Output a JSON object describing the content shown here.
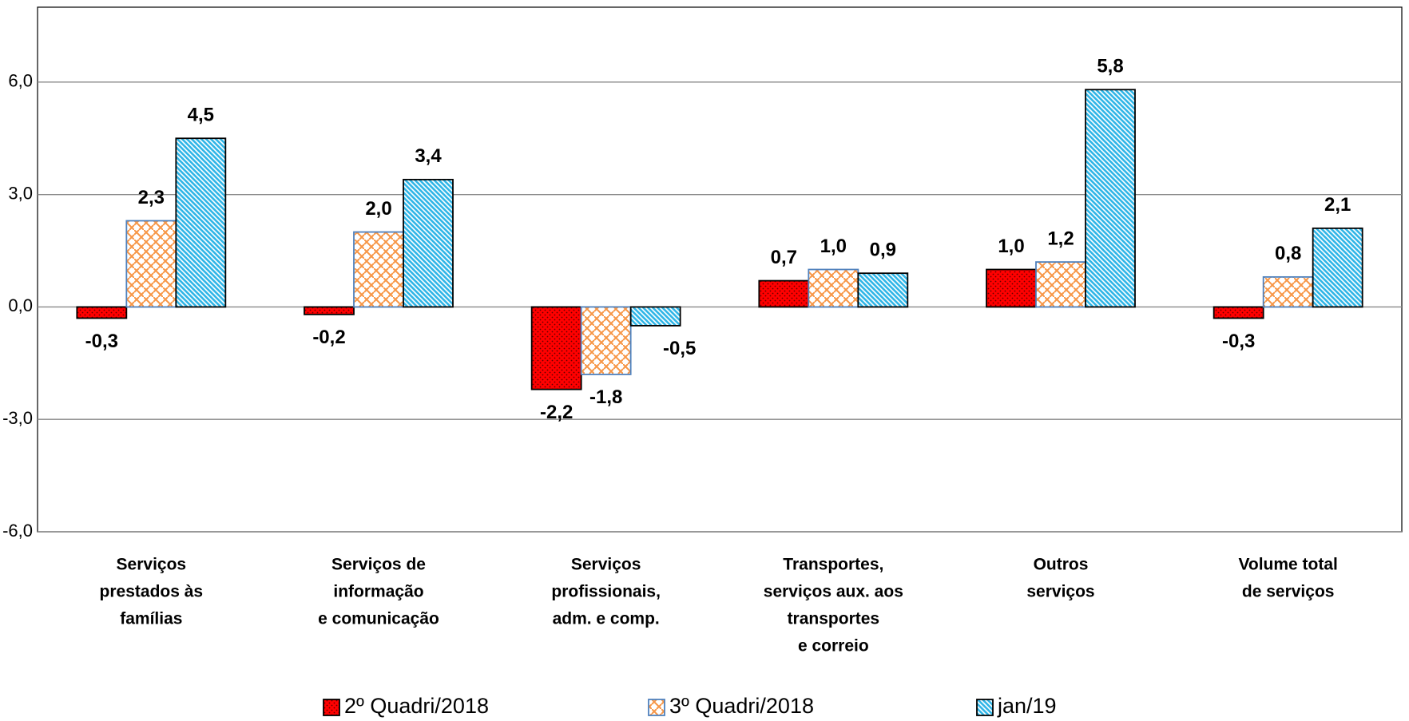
{
  "chart_data": {
    "type": "bar",
    "categories": [
      [
        "Serviços",
        "prestados às",
        "famílias"
      ],
      [
        "Serviços de",
        "informação",
        "e comunicação"
      ],
      [
        "Serviços",
        "profissionais,",
        "adm. e comp."
      ],
      [
        "Transportes,",
        "serviços aux. aos",
        "transportes",
        "e correio"
      ],
      [
        "Outros",
        "serviços"
      ],
      [
        "Volume total",
        "de serviços"
      ]
    ],
    "series": [
      {
        "name": "2º Quadri/2018",
        "color": "#ff0000",
        "values": [
          -0.3,
          -0.2,
          -2.2,
          0.7,
          1.0,
          -0.3
        ],
        "value_labels": [
          "-0,3",
          "-0,2",
          "-2,2",
          "0,7",
          "1,0",
          "-0,3"
        ]
      },
      {
        "name": "3º Quadri/2018",
        "color": "#f79646",
        "values": [
          2.3,
          2.0,
          -1.8,
          1.0,
          1.2,
          0.8
        ],
        "value_labels": [
          "2,3",
          "2,0",
          "-1,8",
          "1,0",
          "1,2",
          "0,8"
        ]
      },
      {
        "name": "jan/19",
        "color": "#31b6e7",
        "values": [
          4.5,
          3.4,
          -0.5,
          0.9,
          5.8,
          2.1
        ],
        "value_labels": [
          "4,5",
          "3,4",
          "-0,5",
          "0,9",
          "5,8",
          "2,1"
        ]
      }
    ],
    "ylim": [
      -6,
      8
    ],
    "yticks": [
      {
        "value": -6,
        "label": "-6,0"
      },
      {
        "value": -3,
        "label": "-3,0"
      },
      {
        "value": 0,
        "label": "0,0"
      },
      {
        "value": 3,
        "label": "3,0"
      },
      {
        "value": 6,
        "label": "6,0"
      }
    ],
    "grid": true,
    "legend": "bottom"
  }
}
